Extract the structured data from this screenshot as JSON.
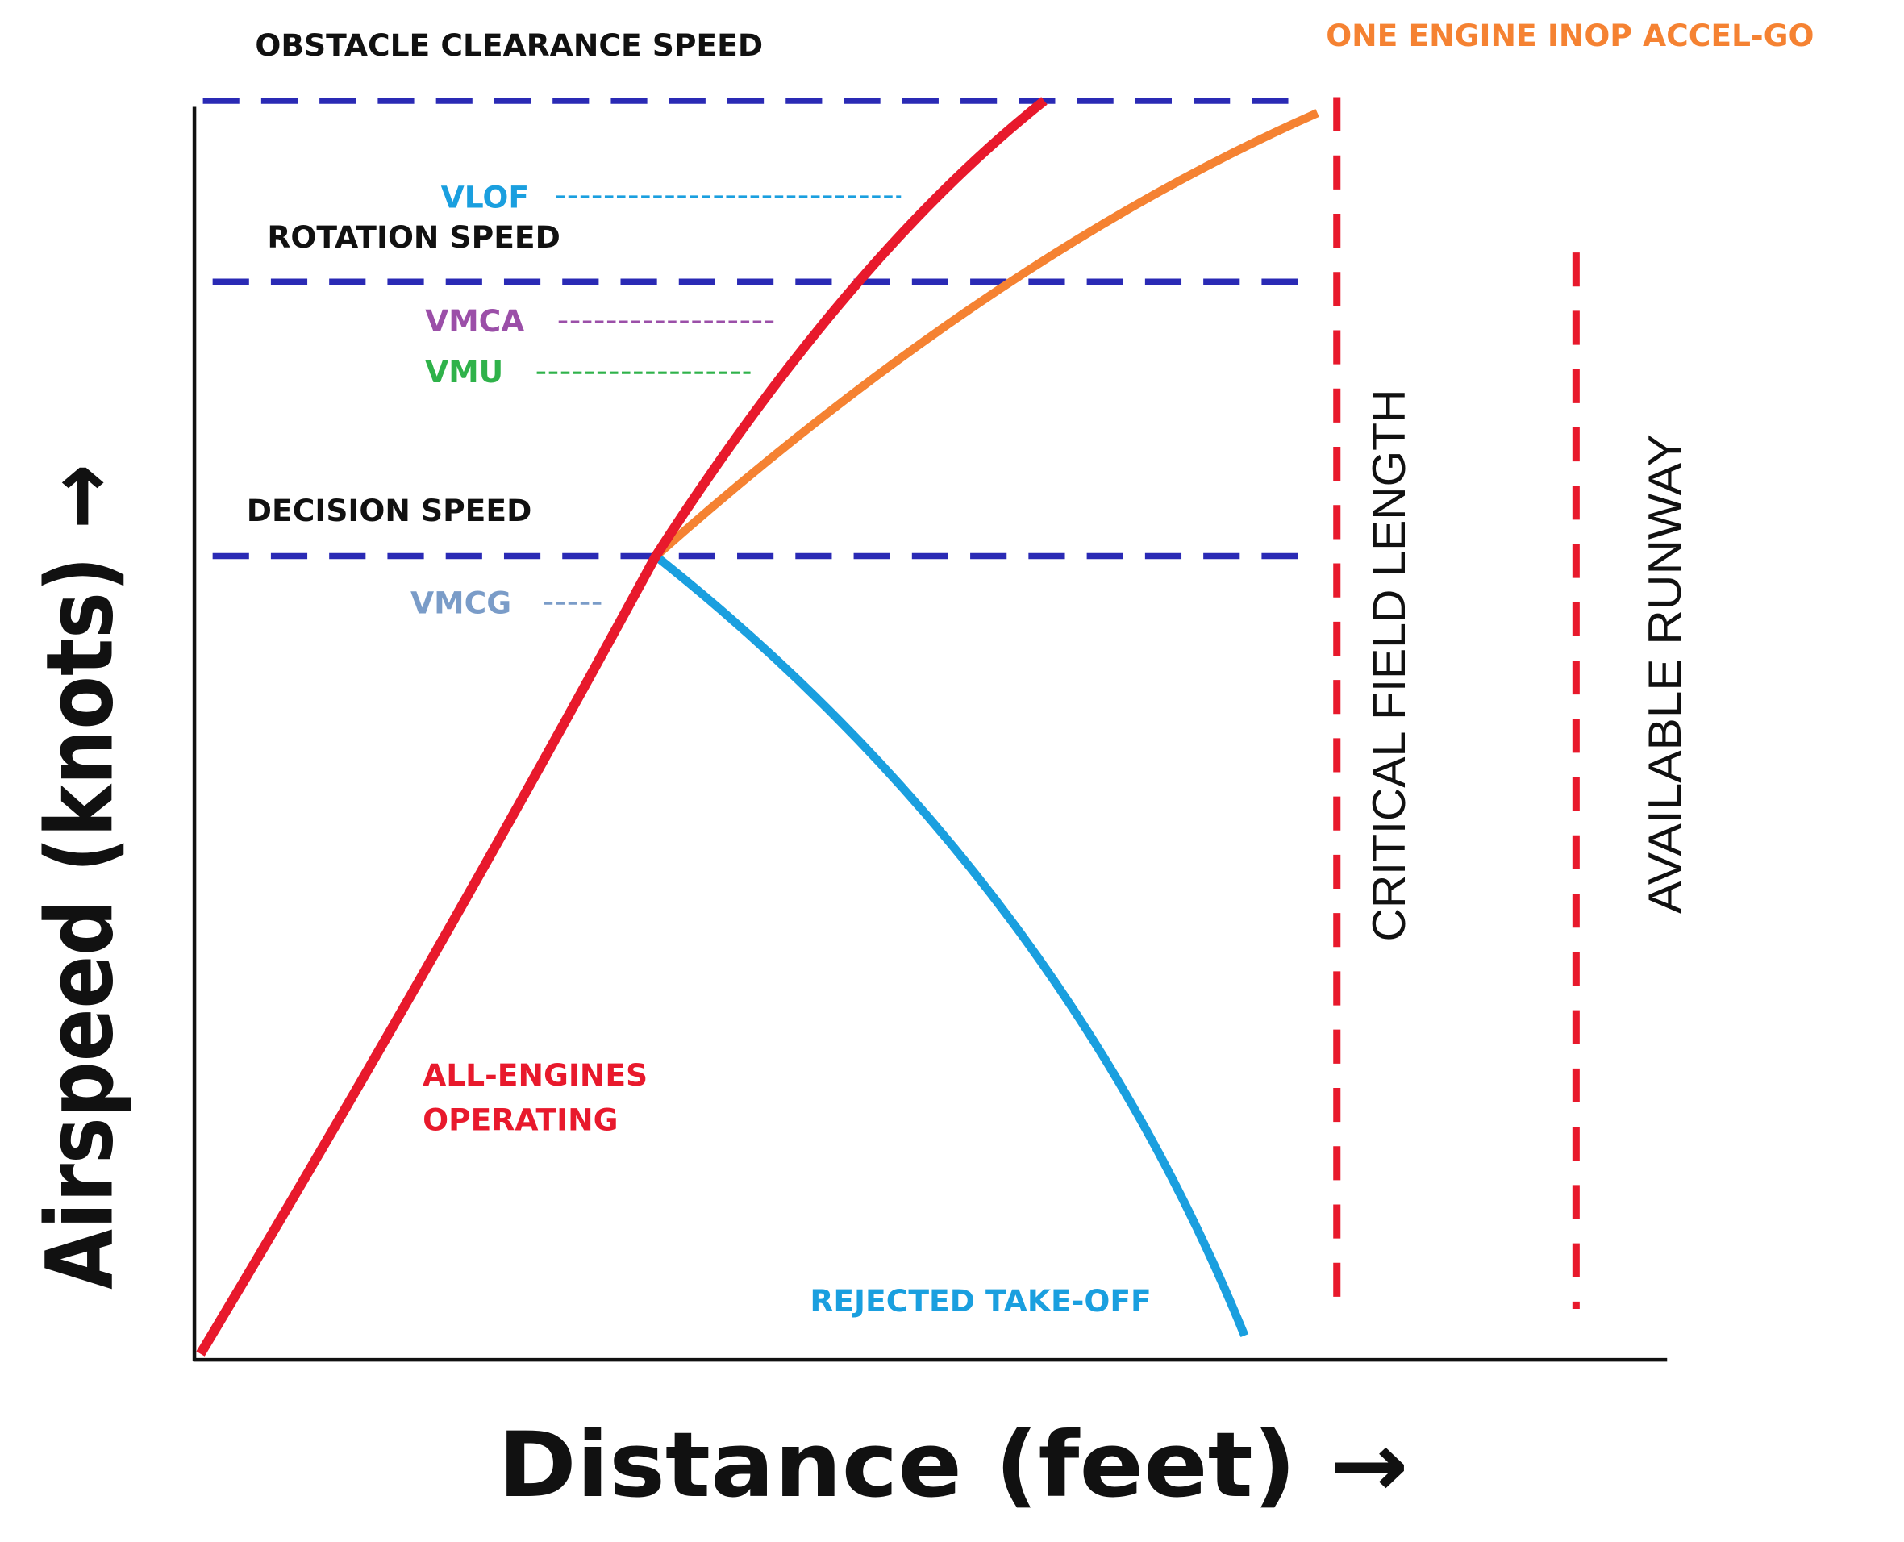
{
  "axes": {
    "y_label": "Airspeed (knots) →",
    "x_label": "Distance (feet) →"
  },
  "speed_lines": [
    "OBSTACLE CLEARANCE SPEED",
    "ROTATION SPEED",
    "DECISION SPEED"
  ],
  "speed_marks": [
    "VLOF",
    "VMCA",
    "VMU",
    "VMCG"
  ],
  "curves": [
    "ALL-ENGINES",
    "OPERATING",
    "ONE ENGINE INOP ACCEL-GO",
    "REJECTED TAKE-OFF"
  ],
  "distances": [
    "CRITICAL FIELD LENGTH",
    "AVAILABLE RUNWAY"
  ]
}
